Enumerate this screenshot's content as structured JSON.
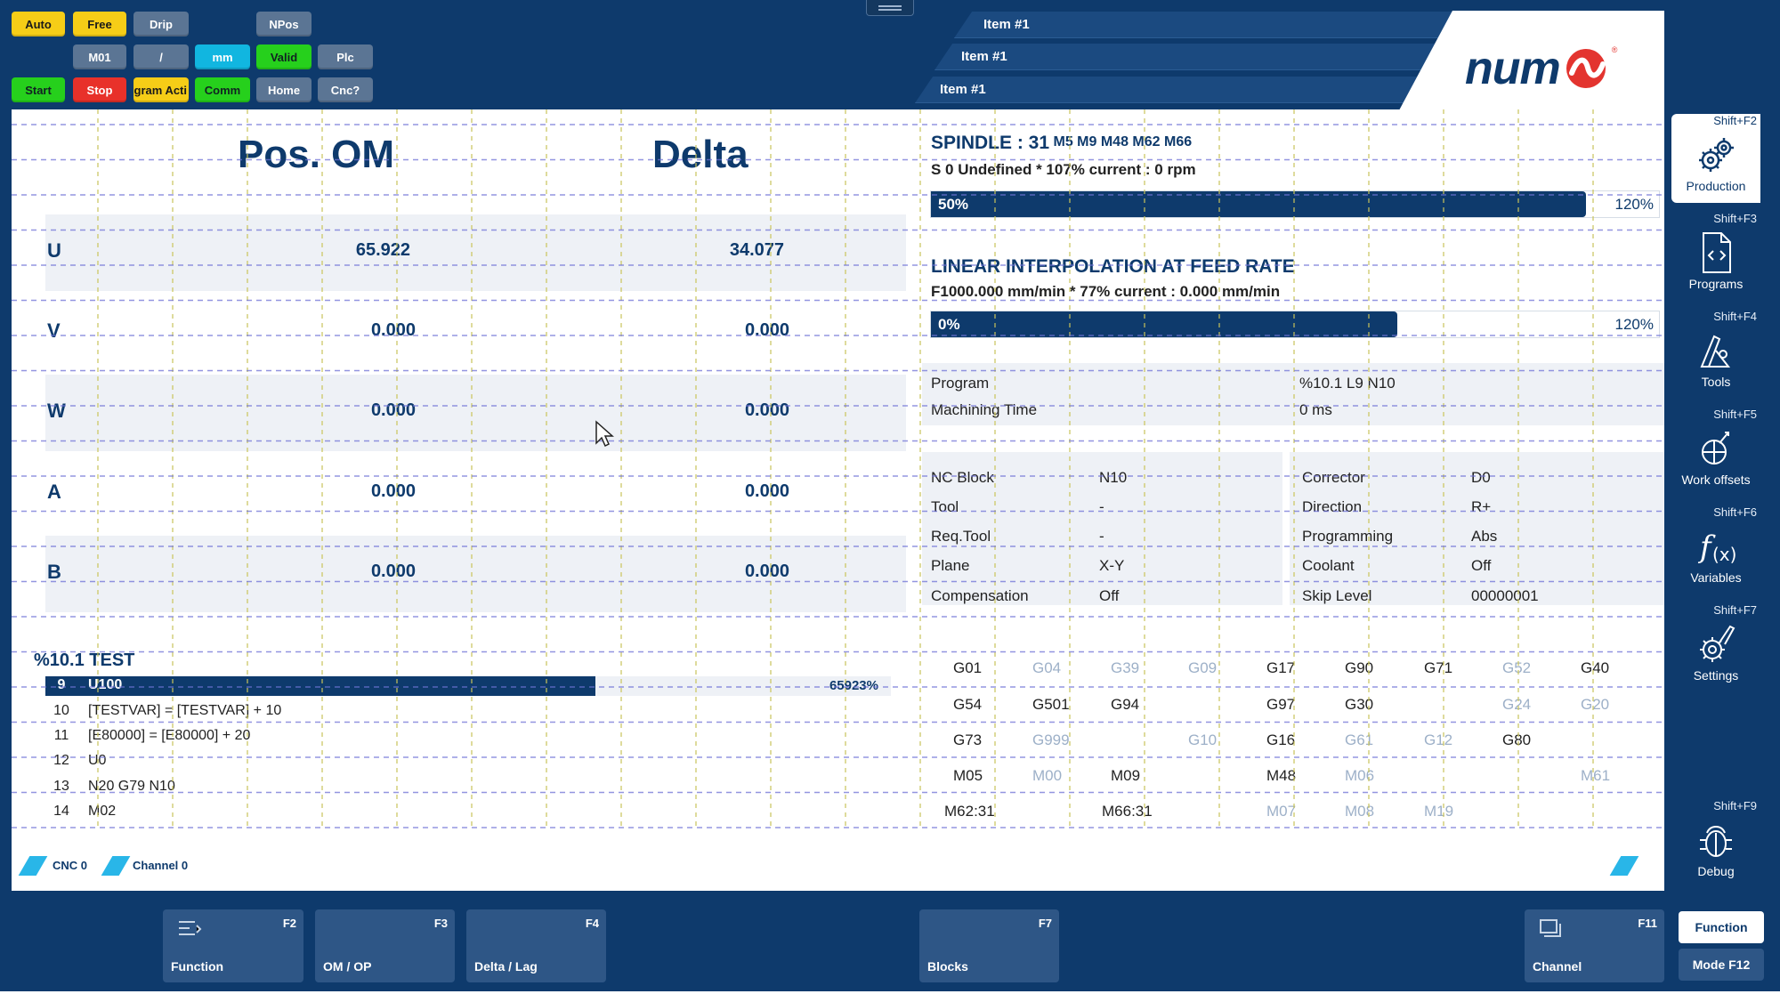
{
  "status_buttons": {
    "auto": "Auto",
    "free": "Free",
    "drip": "Drip",
    "npos": "NPos",
    "m01": "M01",
    "slash": "/",
    "mm": "mm",
    "valid": "Valid",
    "plc": "Plc",
    "start": "Start",
    "stop": "Stop",
    "program_active": "ogram Acti",
    "comm": "Comm",
    "home": "Home",
    "cnc": "Cnc?"
  },
  "header_tabs": [
    "Item #1",
    "Item #1",
    "Item #1"
  ],
  "brand": "num",
  "positions": {
    "col1_title": "Pos. OM",
    "col2_title": "Delta",
    "axes": [
      {
        "name": "U",
        "pos": "65.922",
        "delta": "34.077"
      },
      {
        "name": "V",
        "pos": "0.000",
        "delta": "0.000"
      },
      {
        "name": "W",
        "pos": "0.000",
        "delta": "0.000"
      },
      {
        "name": "A",
        "pos": "0.000",
        "delta": "0.000"
      },
      {
        "name": "B",
        "pos": "0.000",
        "delta": "0.000"
      }
    ]
  },
  "program_listing": {
    "title": "%10.1 TEST",
    "progress_text": "65923%",
    "progress_fraction": 0.65,
    "lines": [
      {
        "num": "9",
        "text": "U100"
      },
      {
        "num": "10",
        "text": "[TESTVAR] = [TESTVAR] + 10"
      },
      {
        "num": "11",
        "text": "[E80000] = [E80000] + 20"
      },
      {
        "num": "12",
        "text": "U0"
      },
      {
        "num": "13",
        "text": "N20 G79 N10"
      },
      {
        "num": "14",
        "text": "M02"
      }
    ]
  },
  "spindle": {
    "title": "SPINDLE : 31",
    "mcodes": "M5 M9 M48 M62 M66",
    "info": "S 0 Undefined * 107% current : 0 rpm",
    "bar_label": "50%",
    "bar_fraction": 0.9,
    "bar_max": "120%"
  },
  "feed": {
    "title": "LINEAR INTERPOLATION AT FEED RATE",
    "info": "F1000.000 mm/min * 77% current : 0.000 mm/min",
    "bar_label": "0%",
    "bar_fraction": 0.64,
    "bar_max": "120%"
  },
  "program_info": {
    "program_label": "Program",
    "program_value": "%10.1  L9  N10",
    "time_label": "Machining Time",
    "time_value": "0 ms"
  },
  "nc_state": {
    "left": [
      {
        "label": "NC Block",
        "value": "N10"
      },
      {
        "label": "Tool",
        "value": "-"
      },
      {
        "label": "Req.Tool",
        "value": "-"
      },
      {
        "label": "Plane",
        "value": "X-Y"
      },
      {
        "label": "Compensation",
        "value": "Off"
      }
    ],
    "right": [
      {
        "label": "Corrector",
        "value": "D0"
      },
      {
        "label": "Direction",
        "value": "R+"
      },
      {
        "label": "Programming",
        "value": "Abs"
      },
      {
        "label": "Coolant",
        "value": "Off"
      },
      {
        "label": "Skip Level",
        "value": "00000001"
      }
    ]
  },
  "gcodes": {
    "row1": [
      {
        "t": "G01",
        "dim": false
      },
      {
        "t": "G04",
        "dim": true
      },
      {
        "t": "G39",
        "dim": true
      },
      {
        "t": "G09",
        "dim": true
      },
      {
        "t": "G17",
        "dim": false
      },
      {
        "t": "G90",
        "dim": false
      },
      {
        "t": "G71",
        "dim": false
      },
      {
        "t": "G52",
        "dim": true
      },
      {
        "t": "G40",
        "dim": false
      }
    ],
    "row2": [
      {
        "t": "G54",
        "dim": false
      },
      {
        "t": "G501",
        "dim": false
      },
      {
        "t": "G94",
        "dim": false
      },
      {
        "t": "G97",
        "dim": false
      },
      {
        "t": "G30",
        "dim": false
      },
      {
        "t": "G24",
        "dim": true
      },
      {
        "t": "G20",
        "dim": true
      }
    ],
    "row3": [
      {
        "t": "G73",
        "dim": false
      },
      {
        "t": "G999",
        "dim": true
      },
      {
        "t": "G10",
        "dim": true
      },
      {
        "t": "G16",
        "dim": false
      },
      {
        "t": "G61",
        "dim": true
      },
      {
        "t": "G12",
        "dim": true
      },
      {
        "t": "G80",
        "dim": false
      }
    ],
    "row4": [
      {
        "t": "M05",
        "dim": false
      },
      {
        "t": "M00",
        "dim": true
      },
      {
        "t": "M09",
        "dim": false
      },
      {
        "t": "M48",
        "dim": false
      },
      {
        "t": "M06",
        "dim": true
      },
      {
        "t": "M61",
        "dim": true
      }
    ],
    "row5": [
      {
        "t": "M62:31",
        "dim": false
      },
      {
        "t": "M66:31",
        "dim": false
      },
      {
        "t": "M07",
        "dim": true
      },
      {
        "t": "M08",
        "dim": true
      },
      {
        "t": "M19",
        "dim": true
      }
    ]
  },
  "footer": {
    "cnc": "CNC 0",
    "channel": "Channel 0"
  },
  "sidebar": [
    {
      "key": "Shift+F2",
      "label": "Production",
      "icon": "gears-icon"
    },
    {
      "key": "Shift+F3",
      "label": "Programs",
      "icon": "code-file-icon"
    },
    {
      "key": "Shift+F4",
      "label": "Tools",
      "icon": "tools-icon"
    },
    {
      "key": "Shift+F5",
      "label": "Work offsets",
      "icon": "work-offsets-icon"
    },
    {
      "key": "Shift+F6",
      "label": "Variables",
      "icon": "function-icon"
    },
    {
      "key": "Shift+F7",
      "label": "Settings",
      "icon": "settings-icon"
    },
    {
      "key": "Shift+F9",
      "label": "Debug",
      "icon": "bug-icon"
    }
  ],
  "fkeys": [
    {
      "key": "F2",
      "label": "Function"
    },
    {
      "key": "F3",
      "label": "OM / OP"
    },
    {
      "key": "F4",
      "label": "Delta / Lag"
    },
    {
      "key": "F7",
      "label": "Blocks"
    },
    {
      "key": "F11",
      "label": "Channel"
    }
  ],
  "mode_buttons": {
    "function": "Function",
    "mode": "Mode F12"
  },
  "colors": {
    "background": "#0e3a6c",
    "accent_bar": "#0e3a6c",
    "cyan_marker": "#29b6e8"
  }
}
